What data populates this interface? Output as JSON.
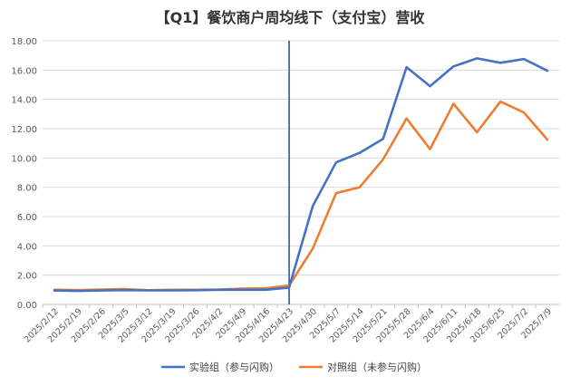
{
  "chart_data": {
    "type": "line",
    "title": "【Q1】餐饮商户周均线下（支付宝）营收",
    "categories": [
      "2025/2/12",
      "2025/2/19",
      "2025/2/26",
      "2025/3/5",
      "2025/3/12",
      "2025/3/19",
      "2025/3/26",
      "2025/4/2",
      "2025/4/9",
      "2025/4/16",
      "2025/4/23",
      "2025/4/30",
      "2025/5/7",
      "2025/5/14",
      "2025/5/21",
      "2025/5/28",
      "2025/6/4",
      "2025/6/11",
      "2025/6/18",
      "2025/6/25",
      "2025/7/2",
      "2025/7/9"
    ],
    "series": [
      {
        "name": "实验组（参与闪购）",
        "color": "#4472c4",
        "values": [
          0.95,
          0.92,
          0.95,
          0.98,
          0.96,
          0.96,
          0.97,
          1.0,
          1.0,
          1.0,
          1.15,
          6.7,
          9.7,
          10.35,
          11.3,
          16.2,
          14.9,
          16.25,
          16.8,
          16.5,
          16.75,
          15.95
        ]
      },
      {
        "name": "对照组（未参与闪购）",
        "color": "#ed7d31",
        "values": [
          1.0,
          0.98,
          1.02,
          1.05,
          0.97,
          1.0,
          1.0,
          1.02,
          1.08,
          1.1,
          1.3,
          3.8,
          7.6,
          8.0,
          9.9,
          12.7,
          10.6,
          13.7,
          11.75,
          13.85,
          13.1,
          11.25
        ]
      }
    ],
    "ylim": [
      0,
      18
    ],
    "yticks": [
      "0.00",
      "2.00",
      "4.00",
      "6.00",
      "8.00",
      "10.00",
      "12.00",
      "14.00",
      "16.00",
      "18.00"
    ],
    "grid": true,
    "legend_position": "bottom",
    "annotation": {
      "type": "vertical-line",
      "at": "2025/4/23",
      "color": "#2f5597"
    }
  }
}
